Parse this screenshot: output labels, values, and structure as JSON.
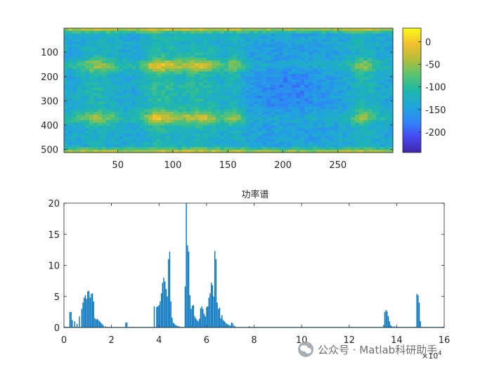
{
  "chart_data": [
    {
      "type": "heatmap",
      "title": "",
      "xlabel": "",
      "ylabel": "",
      "xlim": [
        1,
        300
      ],
      "ylim": [
        1,
        513
      ],
      "xticks": [
        50,
        100,
        150,
        200,
        250
      ],
      "xtick_labels": [
        "50",
        "100",
        "150",
        "200",
        "250"
      ],
      "yticks": [
        100,
        200,
        300,
        400,
        500
      ],
      "ytick_labels": [
        "100",
        "200",
        "300",
        "400",
        "500"
      ],
      "y_reversed": true,
      "colorbar": {
        "range": [
          -245,
          30
        ],
        "ticks": [
          0,
          -50,
          -100,
          -150,
          -200
        ],
        "tick_labels": [
          "0",
          "-50",
          "-100",
          "-150",
          "-200"
        ],
        "colormap": "parula",
        "colors": [
          "#3e26a8",
          "#4749f3",
          "#2e87f7",
          "#20a6da",
          "#1fb8a9",
          "#59c270",
          "#b4bd3a",
          "#f3c02d",
          "#f9fb15"
        ]
      }
    },
    {
      "type": "bar",
      "title": "功率谱",
      "xlabel": "",
      "ylabel": "",
      "xlim": [
        0,
        16
      ],
      "ylim": [
        0,
        20
      ],
      "x_multiplier": "×10⁴",
      "x_multiplier_base": "×10",
      "x_multiplier_exp": "4",
      "xticks": [
        0,
        2,
        4,
        6,
        8,
        10,
        12,
        14,
        16
      ],
      "xtick_labels": [
        "0",
        "2",
        "4",
        "6",
        "8",
        "10",
        "12",
        "14",
        "16"
      ],
      "yticks": [
        0,
        5,
        10,
        15,
        20
      ],
      "ytick_labels": [
        "0",
        "5",
        "10",
        "15",
        "20"
      ],
      "bar_color": "#0072bd",
      "x": [
        0.25,
        0.3,
        0.35,
        0.45,
        0.55,
        0.65,
        0.75,
        0.8,
        0.85,
        0.9,
        0.95,
        1.0,
        1.05,
        1.1,
        1.15,
        1.2,
        1.25,
        1.3,
        1.35,
        1.4,
        1.45,
        1.5,
        1.55,
        1.6,
        1.65,
        1.75,
        2.6,
        2.65,
        3.8,
        3.9,
        3.95,
        4.0,
        4.05,
        4.1,
        4.15,
        4.2,
        4.25,
        4.3,
        4.35,
        4.4,
        4.45,
        4.5,
        4.55,
        4.6,
        4.65,
        4.7,
        4.75,
        4.8,
        4.85,
        5.1,
        5.15,
        5.2,
        5.25,
        5.3,
        5.35,
        5.4,
        5.45,
        5.5,
        5.55,
        5.6,
        5.65,
        5.7,
        5.75,
        5.8,
        5.85,
        5.9,
        5.95,
        6.0,
        6.05,
        6.1,
        6.15,
        6.2,
        6.25,
        6.3,
        6.35,
        6.4,
        6.45,
        6.5,
        6.55,
        6.6,
        6.65,
        6.7,
        6.75,
        6.8,
        6.85,
        6.9,
        6.95,
        7.0,
        7.05,
        7.1,
        7.15,
        7.2,
        7.8,
        7.9,
        8.0,
        13.45,
        13.5,
        13.55,
        13.6,
        13.65,
        13.7,
        13.75,
        13.8,
        13.9,
        14.0,
        14.1,
        14.7,
        14.75,
        14.8,
        14.85,
        14.9,
        14.95,
        15.0
      ],
      "values": [
        2.5,
        2.5,
        1.2,
        1.0,
        0.6,
        1.8,
        3.0,
        4.0,
        4.8,
        5.2,
        4.6,
        5.8,
        5.9,
        4.8,
        5.4,
        5.5,
        4.2,
        1.5,
        1.3,
        1.4,
        1.2,
        1.0,
        0.8,
        0.6,
        0.4,
        0.2,
        0.8,
        0.8,
        3.4,
        3.3,
        3.4,
        3.6,
        4.2,
        5.5,
        7.2,
        8.0,
        7.4,
        6.2,
        5.0,
        11.0,
        12.2,
        4.2,
        1.6,
        0.8,
        0.6,
        0.4,
        0.3,
        0.2,
        0.2,
        6.6,
        20.0,
        13.2,
        12.2,
        5.2,
        3.0,
        3.5,
        3.6,
        1.8,
        1.5,
        1.2,
        1.0,
        1.4,
        3.1,
        3.4,
        3.0,
        2.2,
        1.8,
        3.3,
        3.4,
        4.8,
        5.5,
        7.2,
        6.8,
        5.0,
        12.3,
        11.0,
        4.0,
        3.0,
        3.2,
        1.5,
        2.0,
        1.2,
        1.0,
        0.8,
        0.6,
        0.5,
        0.4,
        0.3,
        0.8,
        0.7,
        0.3,
        0.2,
        0.2,
        0.1,
        0.1,
        0.4,
        2.5,
        2.8,
        2.6,
        1.8,
        1.0,
        0.4,
        0.2,
        0.2,
        0.1,
        0.1,
        0.1,
        0.1,
        0.1,
        5.4,
        5.2,
        4.0,
        1.0
      ]
    }
  ],
  "watermark": {
    "text": "公众号 · Matlab科研助手",
    "icon": "wechat-icon"
  }
}
